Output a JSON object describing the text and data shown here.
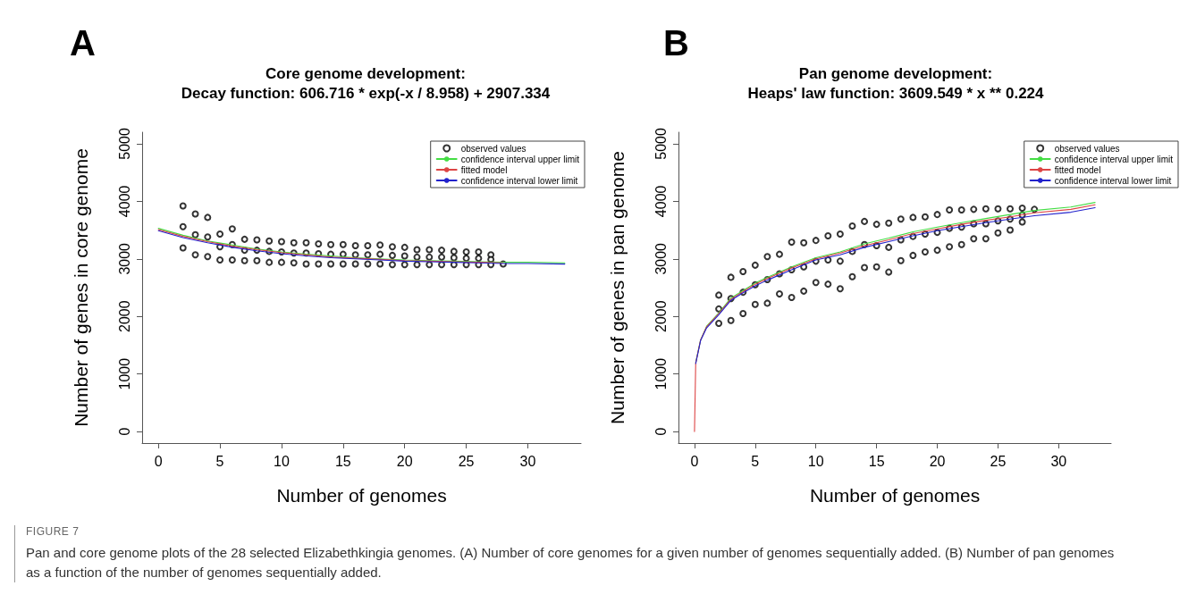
{
  "chart_data": [
    {
      "type": "scatter",
      "title": "Core genome development:\nDecay function: 606.716 * exp(-x / 8.958) + 2907.334",
      "xlabel": "Number of genomes",
      "ylabel": "Number of genes in core genome",
      "annotations": [
        "A",
        "FIGURE 7",
        "Pan and core genome plots of the 28 selected Elizabethkingia genomes. (A) Number of core genomes for a given number of genomes sequentially added. (B) Number of pan genomes as a function of the number of genomes sequentially added."
      ],
      "xlim": [
        -1.32,
        34.32
      ],
      "xticks": [
        0,
        5,
        10,
        15,
        20,
        25,
        30
      ],
      "ylim": [
        -200,
        5200
      ],
      "yticks": [
        0,
        1000,
        2000,
        3000,
        4000,
        5000
      ],
      "grid": false,
      "legend": "top right",
      "series": [
        {
          "name": "observed values",
          "marker": "circle",
          "color": "#000000",
          "x": [
            2,
            2,
            2,
            3,
            3,
            3,
            4,
            4,
            4,
            5,
            5,
            5,
            6,
            6,
            6,
            7,
            7,
            7,
            8,
            8,
            8,
            9,
            9,
            9,
            10,
            10,
            10,
            11,
            11,
            11,
            12,
            12,
            12,
            13,
            13,
            13,
            14,
            14,
            14,
            15,
            15,
            15,
            16,
            16,
            16,
            17,
            17,
            17,
            18,
            18,
            18,
            19,
            19,
            19,
            20,
            20,
            20,
            21,
            21,
            21,
            22,
            22,
            22,
            23,
            23,
            23,
            24,
            24,
            24,
            25,
            25,
            25,
            26,
            26,
            26,
            27,
            27,
            27,
            28
          ],
          "values": [
            3920,
            3560,
            3190,
            3780,
            3420,
            3070,
            3720,
            3380,
            3040,
            3430,
            3210,
            2980,
            3520,
            3250,
            2980,
            3340,
            3150,
            2970,
            3330,
            3150,
            2970,
            3310,
            3130,
            2940,
            3300,
            3120,
            2940,
            3280,
            3100,
            2930,
            3280,
            3100,
            2910,
            3260,
            3090,
            2910,
            3250,
            3080,
            2910,
            3250,
            3080,
            2910,
            3230,
            3070,
            2910,
            3230,
            3070,
            2910,
            3240,
            3080,
            2910,
            3210,
            3060,
            2900,
            3200,
            3050,
            2900,
            3160,
            3030,
            2900,
            3160,
            3030,
            2900,
            3150,
            3030,
            2900,
            3130,
            3020,
            2900,
            3120,
            3010,
            2900,
            3120,
            3010,
            2900,
            3070,
            2990,
            2900,
            2910
          ]
        },
        {
          "name": "confidence interval upper limit",
          "type": "line",
          "marker": "none",
          "color": "#44dd44",
          "x": [
            0,
            2,
            4,
            6,
            8,
            10,
            12,
            14,
            16,
            18,
            20,
            22,
            24,
            26,
            28,
            30,
            33
          ],
          "values": [
            3530,
            3410,
            3310,
            3240,
            3170,
            3120,
            3080,
            3050,
            3020,
            3000,
            2980,
            2970,
            2960,
            2950,
            2940,
            2940,
            2930
          ]
        },
        {
          "name": "fitted model",
          "type": "line",
          "marker": "none",
          "color": "#dd4444",
          "x": [
            0,
            2,
            4,
            6,
            8,
            10,
            12,
            14,
            16,
            18,
            20,
            22,
            24,
            26,
            28
          ],
          "values": [
            3510,
            3390,
            3300,
            3220,
            3160,
            3110,
            3070,
            3030,
            3010,
            2990,
            2970,
            2960,
            2950,
            2940,
            2930
          ]
        },
        {
          "name": "confidence interval lower limit",
          "type": "line",
          "marker": "none",
          "color": "#2222cc",
          "x": [
            0,
            2,
            4,
            6,
            8,
            10,
            12,
            14,
            16,
            18,
            20,
            22,
            24,
            26,
            28,
            30,
            33
          ],
          "values": [
            3490,
            3370,
            3280,
            3200,
            3140,
            3090,
            3050,
            3020,
            3000,
            2980,
            2960,
            2950,
            2940,
            2930,
            2920,
            2920,
            2910
          ]
        }
      ]
    },
    {
      "type": "scatter",
      "title": "Pan genome development:\nHeaps' law function: 3609.549 * x ** 0.224",
      "xlabel": "Number of genomes",
      "ylabel": "Number of genes in pan genome",
      "annotations": [
        "B"
      ],
      "xlim": [
        -1.32,
        34.32
      ],
      "xticks": [
        0,
        5,
        10,
        15,
        20,
        25,
        30
      ],
      "ylim": [
        -200,
        5200
      ],
      "yticks": [
        0,
        1000,
        2000,
        3000,
        4000,
        5000
      ],
      "grid": false,
      "legend": "top right",
      "series": [
        {
          "name": "observed values",
          "marker": "circle",
          "color": "#000000",
          "x": [
            2,
            2,
            2,
            3,
            3,
            3,
            4,
            4,
            4,
            5,
            5,
            5,
            6,
            6,
            6,
            7,
            7,
            7,
            8,
            8,
            8,
            9,
            9,
            9,
            10,
            10,
            10,
            11,
            11,
            11,
            12,
            12,
            12,
            13,
            13,
            13,
            14,
            14,
            14,
            15,
            15,
            15,
            16,
            16,
            16,
            17,
            17,
            17,
            18,
            18,
            18,
            19,
            19,
            19,
            20,
            20,
            20,
            21,
            21,
            21,
            22,
            22,
            22,
            23,
            23,
            23,
            24,
            24,
            24,
            25,
            25,
            25,
            26,
            26,
            26,
            27,
            27,
            27,
            28
          ],
          "values": [
            2370,
            2130,
            1880,
            2680,
            2310,
            1930,
            2780,
            2420,
            2050,
            2890,
            2550,
            2210,
            3040,
            2640,
            2230,
            3080,
            2740,
            2390,
            3290,
            2810,
            2330,
            3280,
            2860,
            2440,
            3320,
            2960,
            2590,
            3400,
            2980,
            2560,
            3430,
            2960,
            2480,
            3570,
            3130,
            2690,
            3650,
            3250,
            2850,
            3600,
            3230,
            2860,
            3620,
            3200,
            2770,
            3690,
            3330,
            2970,
            3720,
            3390,
            3060,
            3730,
            3430,
            3120,
            3770,
            3460,
            3150,
            3850,
            3530,
            3210,
            3850,
            3550,
            3250,
            3860,
            3610,
            3350,
            3870,
            3610,
            3350,
            3870,
            3660,
            3450,
            3870,
            3690,
            3500,
            3880,
            3760,
            3640,
            3860
          ]
        },
        {
          "name": "confidence interval upper limit",
          "type": "line",
          "marker": "none",
          "color": "#44dd44",
          "x": [
            0.1,
            0.5,
            1,
            2,
            3,
            4,
            5,
            6,
            8,
            10,
            12,
            14,
            16,
            18,
            20,
            22,
            24,
            26,
            28,
            31,
            33
          ],
          "values": [
            1200,
            1590,
            1830,
            2060,
            2320,
            2450,
            2580,
            2680,
            2860,
            3020,
            3120,
            3260,
            3360,
            3470,
            3550,
            3630,
            3700,
            3770,
            3840,
            3900,
            3980
          ]
        },
        {
          "name": "fitted model",
          "type": "line",
          "marker": "none",
          "color": "#dd4444",
          "x": [
            0,
            0.1,
            0.5,
            1,
            2,
            3,
            4,
            5,
            6,
            8,
            10,
            12,
            14,
            16,
            18,
            20,
            22,
            24,
            26,
            28,
            31,
            33
          ],
          "values": [
            0,
            1190,
            1590,
            1820,
            2050,
            2300,
            2430,
            2560,
            2660,
            2840,
            3000,
            3100,
            3230,
            3330,
            3440,
            3520,
            3600,
            3670,
            3730,
            3800,
            3860,
            3940
          ]
        },
        {
          "name": "confidence interval lower limit",
          "type": "line",
          "marker": "none",
          "color": "#2222cc",
          "x": [
            0.1,
            0.5,
            1,
            2,
            3,
            4,
            5,
            6,
            8,
            10,
            12,
            14,
            16,
            18,
            20,
            22,
            24,
            26,
            28,
            31,
            33
          ],
          "values": [
            1180,
            1580,
            1800,
            2030,
            2280,
            2410,
            2530,
            2630,
            2810,
            2980,
            3070,
            3200,
            3300,
            3400,
            3490,
            3560,
            3630,
            3690,
            3750,
            3810,
            3890
          ]
        }
      ]
    }
  ]
}
